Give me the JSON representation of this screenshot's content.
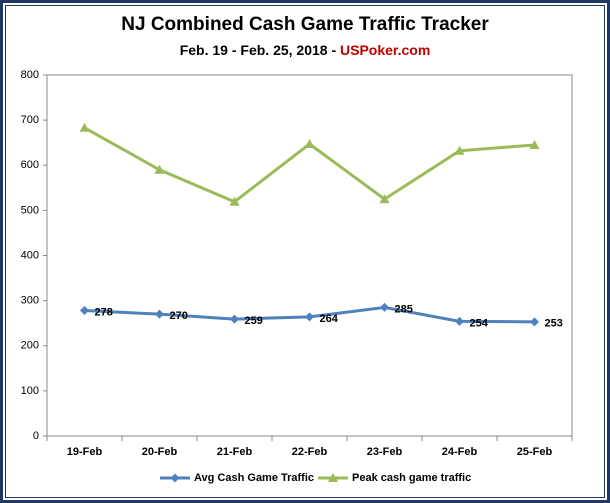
{
  "chart_data": {
    "type": "line",
    "title": "NJ Combined Cash Game Traffic Tracker",
    "subtitle": [
      "Feb. 19 - Feb. 25, 2018 - ",
      "USPoker.com"
    ],
    "subtitle_colors": [
      "#000000",
      "#c00000"
    ],
    "categories": [
      "19-Feb",
      "20-Feb",
      "21-Feb",
      "22-Feb",
      "23-Feb",
      "24-Feb",
      "25-Feb"
    ],
    "series": [
      {
        "name": "Avg Cash Game Traffic",
        "color": "#4f81bd",
        "marker": "diamond",
        "data_labels": true,
        "values": [
          278,
          270,
          259,
          264,
          285,
          254,
          253
        ]
      },
      {
        "name": "Peak cash game traffic",
        "color": "#9bbb59",
        "marker": "triangle",
        "data_labels": false,
        "values": [
          683,
          590,
          519,
          647,
          525,
          632,
          645
        ]
      }
    ],
    "ylim": [
      0,
      800
    ],
    "yticks": [
      0,
      100,
      200,
      300,
      400,
      500,
      600,
      700,
      800
    ],
    "grid": false,
    "legend": "bottom"
  }
}
